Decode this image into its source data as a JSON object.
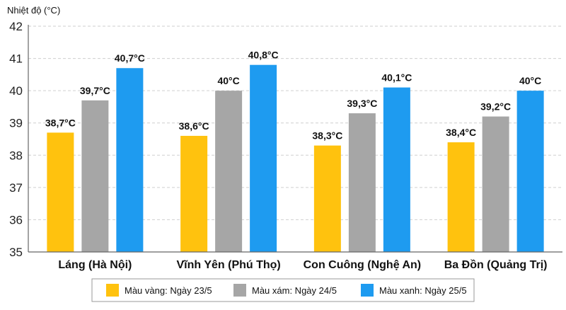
{
  "chart_data": {
    "type": "bar",
    "ylabel": "Nhiệt độ (°C)",
    "ylim": [
      35,
      42
    ],
    "yticks": [
      35,
      36,
      37,
      38,
      39,
      40,
      41,
      42
    ],
    "categories": [
      "Láng (Hà Nội)",
      "Vĩnh Yên (Phú Thọ)",
      "Con Cuông (Nghệ An)",
      "Ba Đồn (Quảng Trị)"
    ],
    "series": [
      {
        "name": "Màu vàng: Ngày 23/5",
        "color": "#FFC20E",
        "values": [
          38.7,
          38.6,
          38.3,
          38.4
        ],
        "labels": [
          "38,7°C",
          "38,6°C",
          "38,3°C",
          "38,4°C"
        ]
      },
      {
        "name": "Màu xám: Ngày 24/5",
        "color": "#A6A6A6",
        "values": [
          39.7,
          40.0,
          39.3,
          39.2
        ],
        "labels": [
          "39,7°C",
          "40°C",
          "39,3°C",
          "39,2°C"
        ]
      },
      {
        "name": "Màu xanh: Ngày 25/5",
        "color": "#1E9BF0",
        "values": [
          40.7,
          40.8,
          40.1,
          40.0
        ],
        "labels": [
          "40,7°C",
          "40,8°C",
          "40,1°C",
          "40°C"
        ]
      }
    ],
    "grid": true,
    "legend": "bottom"
  }
}
